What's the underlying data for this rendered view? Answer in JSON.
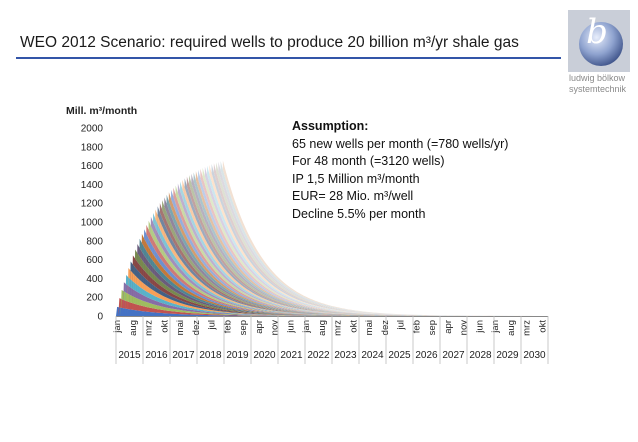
{
  "slide": {
    "title": "WEO 2012 Scenario: required wells to produce 20 billion m³/yr shale gas",
    "logo": {
      "letter": "b",
      "line1": "ludwig bölkow",
      "line2": "systemtechnik",
      "icon": "lbst-logo-icon"
    },
    "assumption": {
      "header": "Assumption:",
      "lines": [
        "65 new wells per month (=780 wells/yr)",
        "For 48 month (=3120 wells)",
        "IP 1,5 Million m³/month",
        "EUR= 28 Mio. m³/well",
        "Decline 5.5% per month"
      ]
    }
  },
  "chart_data": {
    "type": "area",
    "stacked": true,
    "ylabel": "Mill. m³/month",
    "ylim": [
      0,
      2000
    ],
    "yticks": [
      0,
      200,
      400,
      600,
      800,
      1000,
      1200,
      1400,
      1600,
      1800,
      2000
    ],
    "grid": false,
    "legend": "none",
    "x_start_month": "jan 2015",
    "x_end_month": "dez 2030",
    "x_tick_labels": [
      "jan",
      "aug",
      "mrz",
      "okt",
      "mai",
      "dez",
      "jul",
      "feb",
      "sep",
      "apr",
      "nov",
      "jun",
      "jan",
      "aug",
      "mrz",
      "okt",
      "mai",
      "dez",
      "jul",
      "feb",
      "sep",
      "apr",
      "nov",
      "jun",
      "jan",
      "aug",
      "mrz",
      "okt"
    ],
    "years": [
      "2015",
      "2016",
      "2017",
      "2018",
      "2019",
      "2020",
      "2021",
      "2022",
      "2023",
      "2024",
      "2025",
      "2026",
      "2027",
      "2028",
      "2029",
      "2030"
    ],
    "model": {
      "new_wells_per_month": 65,
      "drilling_months": 48,
      "ip_mill_m3_per_month_per_well": 1.5,
      "decline_per_month": 0.055
    },
    "series_summary": [
      {
        "month": "jan 2015",
        "total": 97.5
      },
      {
        "month": "jan 2016",
        "total": 823
      },
      {
        "month": "jan 2017",
        "total": 1223
      },
      {
        "month": "jan 2018",
        "total": 1525
      },
      {
        "month": "dez 2018",
        "total": 1650
      },
      {
        "month": "jan 2019",
        "total": 1559
      },
      {
        "month": "jan 2020",
        "total": 793
      },
      {
        "month": "jan 2021",
        "total": 403
      },
      {
        "month": "jan 2022",
        "total": 205
      },
      {
        "month": "jan 2023",
        "total": 104
      },
      {
        "month": "jan 2024",
        "total": 53
      },
      {
        "month": "jan 2026",
        "total": 14
      },
      {
        "month": "jan 2028",
        "total": 3.5
      }
    ]
  }
}
